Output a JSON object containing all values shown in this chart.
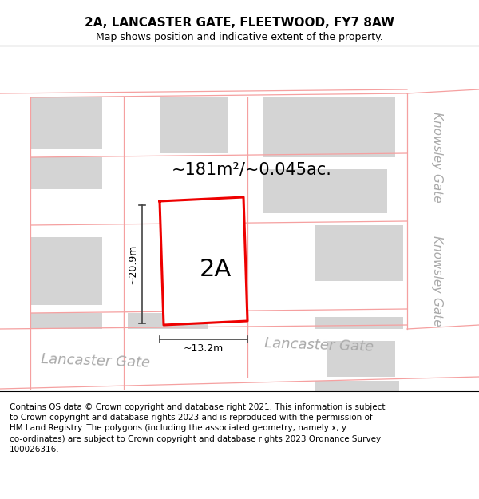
{
  "title": "2A, LANCASTER GATE, FLEETWOOD, FY7 8AW",
  "subtitle": "Map shows position and indicative extent of the property.",
  "footer_line1": "Contains OS data © Crown copyright and database right 2021. This information is subject",
  "footer_line2": "to Crown copyright and database rights 2023 and is reproduced with the permission of",
  "footer_line3": "HM Land Registry. The polygons (including the associated geometry, namely x, y",
  "footer_line4": "co-ordinates) are subject to Crown copyright and database rights 2023 Ordnance Survey",
  "footer_line5": "100026316.",
  "title_fontsize": 11,
  "subtitle_fontsize": 9,
  "footer_fontsize": 7.5,
  "area_text": "~181m²/~0.045ac.",
  "dim_width_text": "~13.2m",
  "dim_height_text": "~20.9m",
  "plot_label": "2A",
  "street_lancaster": "Lancaster Gate",
  "street_knowsley": "Knowsley Gate",
  "map_bg": "#f7f7f7",
  "road_color": "#ffffff",
  "building_color": "#d4d4d4",
  "road_line_color": "#f5a0a0",
  "plot_outline_color": "#ee0000",
  "dim_line_color": "#444444",
  "street_label_color": "#aaaaaa"
}
